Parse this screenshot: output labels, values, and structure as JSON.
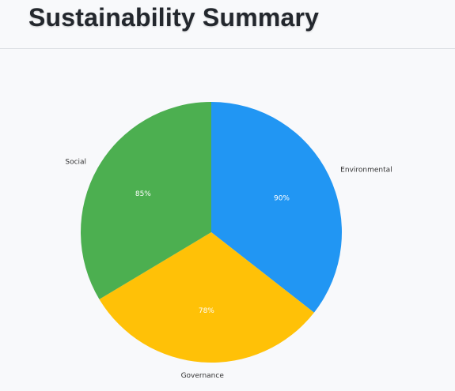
{
  "header": {
    "title": "Sustainability Summary"
  },
  "chart_data": {
    "type": "pie",
    "title": "",
    "categories": [
      "Environmental",
      "Governance",
      "Social"
    ],
    "values": [
      90,
      78,
      85
    ],
    "value_labels": [
      "90%",
      "78%",
      "85%"
    ],
    "colors": [
      "#2196f3",
      "#ffc107",
      "#4caf50"
    ],
    "start_angle": "12 o'clock",
    "direction": "clockwise",
    "legend": "none"
  }
}
